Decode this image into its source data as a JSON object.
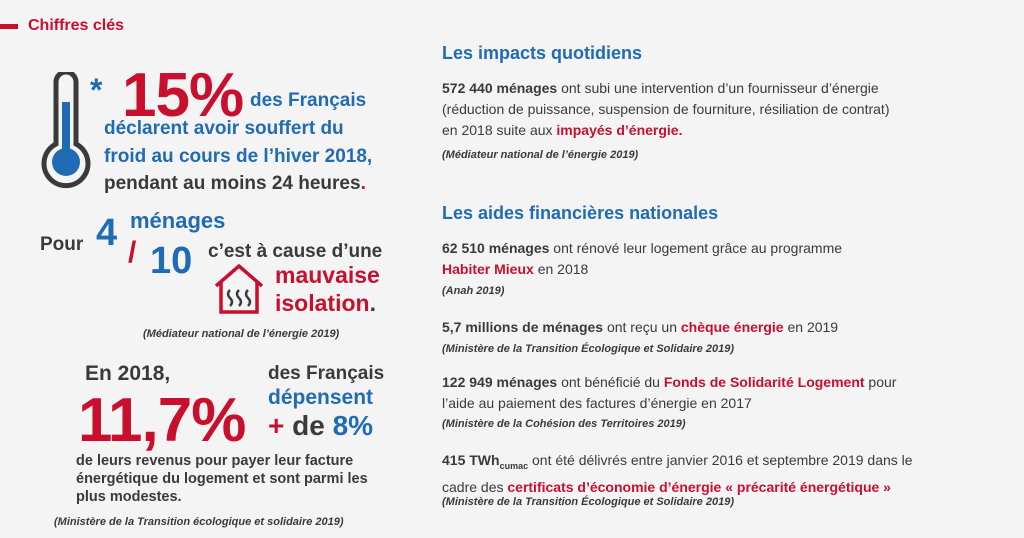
{
  "header": {
    "title": "Chiffres clés"
  },
  "stat1": {
    "star": "*",
    "value": "15%",
    "line_a": "des Français",
    "line_b": "déclarent avoir souffert du",
    "line_c": "froid au cours de l’hiver 2018,",
    "line_d": "pendant au moins 24 heures",
    "line_d_end": "."
  },
  "stat2": {
    "pour": "Pour",
    "numerator": "4",
    "numerator_label": "ménages",
    "slash": "/",
    "denominator": "10",
    "cause": "c’est à cause d’une",
    "cause_red1": "mauvaise",
    "cause_red2": "isolation",
    "cause_end": ".",
    "source": "(Médiateur national de l’énergie 2019)"
  },
  "stat3": {
    "year": "En 2018,",
    "value": "11,7%",
    "line_a": "des Français",
    "line_b": "dépensent",
    "plus": "+",
    "de": "de",
    "pct": "8%",
    "body": "de leurs revenus pour payer leur facture énergétique du logement et sont parmi les plus modestes.",
    "source": "(Ministère de la Transition écologique et solidaire 2019)"
  },
  "impacts": {
    "title": "Les impacts quotidiens",
    "bold": "572 440 ménages",
    "text1": " ont subi une intervention d’un fournisseur d’énergie",
    "text2": "(réduction de puissance, suspension de fourniture, résiliation de contrat)",
    "text3": "en 2018 suite aux ",
    "red": "impayés d’énergie.",
    "source": "(Médiateur national de l’énergie 2019)"
  },
  "aides": {
    "title": "Les aides financières nationales",
    "item1": {
      "bold": "62 510 ménages",
      "text1": " ont rénové leur logement grâce au programme",
      "red": "Habiter Mieux",
      "text2": " en 2018",
      "source": "(Anah 2019)"
    },
    "item2": {
      "bold": "5,7 millions de ménages",
      "text1": " ont reçu un ",
      "red": "chèque énergie",
      "text2": " en 2019",
      "source": "(Ministère de la Transition Écologique et Solidaire 2019)"
    },
    "item3": {
      "bold": "122 949 ménages",
      "text1": " ont bénéficié du ",
      "red": "Fonds de Solidarité Logement",
      "text2": " pour",
      "text3": "l’aide au paiement des factures d’énergie en 2017",
      "source": "(Ministère de la Cohésion des Territoires 2019)"
    },
    "item4": {
      "bold": "415 TWh",
      "sub": "cumac",
      "text1": " ont été délivrés entre janvier 2016 et septembre 2019 dans le",
      "text2": "cadre des ",
      "red": "certificats d’économie d’énergie « précarité énergétique »",
      "source": "(Ministère de la Transition Écologique et Solidaire 2019)"
    }
  },
  "colors": {
    "red": "#c8102e",
    "blue": "#1f6bb5",
    "dark": "#3a3a3a"
  },
  "icons": [
    "thermometer-icon",
    "house-heat-icon"
  ]
}
